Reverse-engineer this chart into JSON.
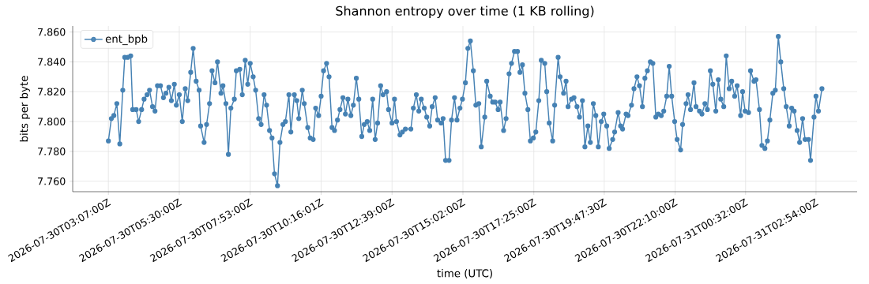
{
  "chart_data": {
    "type": "line",
    "title": "Shannon entropy over time (1 KB rolling)",
    "xlabel": "time (UTC)",
    "ylabel": "bits per byte",
    "x": [
      "2026-07-30T03:07",
      "2026-07-30T03:13",
      "2026-07-30T03:18",
      "2026-07-30T03:24",
      "2026-07-30T03:30",
      "2026-07-30T03:36",
      "2026-07-30T03:40",
      "2026-07-30T03:46",
      "2026-07-30T03:52",
      "2026-07-30T03:56",
      "2026-07-30T04:03",
      "2026-07-30T04:08",
      "2026-07-30T04:14",
      "2026-07-30T04:19",
      "2026-07-30T04:25",
      "2026-07-30T04:30",
      "2026-07-30T04:36",
      "2026-07-30T04:41",
      "2026-07-30T04:46",
      "2026-07-30T04:52",
      "2026-07-30T04:58",
      "2026-07-30T05:03",
      "2026-07-30T05:09",
      "2026-07-30T05:14",
      "2026-07-30T05:20",
      "2026-07-30T05:24",
      "2026-07-30T05:30",
      "2026-07-30T05:36",
      "2026-07-30T05:42",
      "2026-07-30T05:47",
      "2026-07-30T05:53",
      "2026-07-30T05:58",
      "2026-07-30T06:04",
      "2026-07-30T06:10",
      "2026-07-30T06:13",
      "2026-07-30T06:20",
      "2026-07-30T06:25",
      "2026-07-30T06:31",
      "2026-07-30T06:36",
      "2026-07-30T06:42",
      "2026-07-30T06:47",
      "2026-07-30T06:54",
      "2026-07-30T06:58",
      "2026-07-30T07:04",
      "2026-07-30T07:09",
      "2026-07-30T07:14",
      "2026-07-30T07:21",
      "2026-07-30T07:25",
      "2026-07-30T07:32",
      "2026-07-30T07:37",
      "2026-07-30T07:43",
      "2026-07-30T07:48",
      "2026-07-30T07:53",
      "2026-07-30T07:59",
      "2026-07-30T08:04",
      "2026-07-30T08:10",
      "2026-07-30T08:15",
      "2026-07-30T08:21",
      "2026-07-30T08:26",
      "2026-07-30T08:32",
      "2026-07-30T08:37",
      "2026-07-30T08:42",
      "2026-07-30T08:48",
      "2026-07-30T08:53",
      "2026-07-30T08:59",
      "2026-07-30T09:04",
      "2026-07-30T09:11",
      "2026-07-30T09:15",
      "2026-07-30T09:22",
      "2026-07-30T09:27",
      "2026-07-30T09:31",
      "2026-07-30T09:38",
      "2026-07-30T09:42",
      "2026-07-30T09:49",
      "2026-07-30T09:54",
      "2026-07-30T10:00",
      "2026-07-30T10:05",
      "2026-07-30T10:11",
      "2026-07-30T10:16",
      "2026-07-30T10:21",
      "2026-07-30T10:27",
      "2026-07-30T10:32",
      "2026-07-30T10:38",
      "2026-07-30T10:43",
      "2026-07-30T10:49",
      "2026-07-30T10:54",
      "2026-07-30T11:00",
      "2026-07-30T11:05",
      "2026-07-30T11:10",
      "2026-07-30T11:16",
      "2026-07-30T11:21",
      "2026-07-30T11:27",
      "2026-07-30T11:32",
      "2026-07-30T11:38",
      "2026-07-30T11:43",
      "2026-07-30T11:49",
      "2026-07-30T11:54",
      "2026-07-30T12:00",
      "2026-07-30T12:05",
      "2026-07-30T12:10",
      "2026-07-30T12:16",
      "2026-07-30T12:21",
      "2026-07-30T12:28",
      "2026-07-30T12:32",
      "2026-07-30T12:39",
      "2026-07-30T12:44",
      "2026-07-30T12:48",
      "2026-07-30T12:55",
      "2026-07-30T13:00",
      "2026-07-30T13:06",
      "2026-07-30T13:17",
      "2026-07-30T13:22",
      "2026-07-30T13:28",
      "2026-07-30T13:33",
      "2026-07-30T13:38",
      "2026-07-30T13:44",
      "2026-07-30T13:49",
      "2026-07-30T13:55",
      "2026-07-30T14:00",
      "2026-07-30T14:06",
      "2026-07-30T14:11",
      "2026-07-30T14:18",
      "2026-07-30T14:22",
      "2026-07-30T14:27",
      "2026-07-30T14:34",
      "2026-07-30T14:39",
      "2026-07-30T14:45",
      "2026-07-30T14:50",
      "2026-07-30T14:56",
      "2026-07-30T15:01",
      "2026-07-30T15:07",
      "2026-07-30T15:12",
      "2026-07-30T15:17",
      "2026-07-30T15:23",
      "2026-07-30T15:28",
      "2026-07-30T15:34",
      "2026-07-30T15:39",
      "2026-07-30T15:46",
      "2026-07-30T15:50",
      "2026-07-30T15:57",
      "2026-07-30T16:02",
      "2026-07-30T16:07",
      "2026-07-30T16:13",
      "2026-07-30T16:17",
      "2026-07-30T16:24",
      "2026-07-30T16:29",
      "2026-07-30T16:35",
      "2026-07-30T16:40",
      "2026-07-30T16:46",
      "2026-07-30T16:52",
      "2026-07-30T16:57",
      "2026-07-30T17:02",
      "2026-07-30T17:07",
      "2026-07-30T17:13",
      "2026-07-30T17:18",
      "2026-07-30T17:24",
      "2026-07-30T17:29",
      "2026-07-30T17:35",
      "2026-07-30T17:40",
      "2026-07-30T17:47",
      "2026-07-30T17:51",
      "2026-07-30T17:56",
      "2026-07-30T18:03",
      "2026-07-30T18:07",
      "2026-07-30T18:14",
      "2026-07-30T18:18",
      "2026-07-30T18:25",
      "2026-07-30T18:30",
      "2026-07-30T18:34",
      "2026-07-30T18:41",
      "2026-07-30T18:46",
      "2026-07-30T18:52",
      "2026-07-30T18:57",
      "2026-07-30T19:03",
      "2026-07-30T19:08",
      "2026-07-30T19:14",
      "2026-07-30T19:19",
      "2026-07-30T19:25",
      "2026-07-30T19:30",
      "2026-07-30T19:35",
      "2026-07-30T19:41",
      "2026-07-30T19:46",
      "2026-07-30T19:52",
      "2026-07-30T19:57",
      "2026-07-30T20:04",
      "2026-07-30T20:08",
      "2026-07-30T20:15",
      "2026-07-30T20:20",
      "2026-07-30T20:24",
      "2026-07-30T20:31",
      "2026-07-30T20:35",
      "2026-07-30T20:42",
      "2026-07-30T20:47",
      "2026-07-30T20:53",
      "2026-07-30T20:58",
      "2026-07-30T21:04",
      "2026-07-30T21:09",
      "2026-07-30T21:14",
      "2026-07-30T21:20",
      "2026-07-30T21:25",
      "2026-07-30T21:31",
      "2026-07-30T21:36",
      "2026-07-30T21:42",
      "2026-07-30T21:47",
      "2026-07-30T21:53",
      "2026-07-30T21:58",
      "2026-07-30T22:03",
      "2026-07-30T22:09",
      "2026-07-30T22:14",
      "2026-07-30T22:21",
      "2026-07-30T22:25",
      "2026-07-30T22:32",
      "2026-07-30T22:36",
      "2026-07-30T22:41",
      "2026-07-30T22:48",
      "2026-07-30T22:52",
      "2026-07-30T22:59",
      "2026-07-30T23:04",
      "2026-07-30T23:10",
      "2026-07-30T23:15",
      "2026-07-30T23:21",
      "2026-07-30T23:26",
      "2026-07-30T23:32",
      "2026-07-30T23:37",
      "2026-07-30T23:42",
      "2026-07-30T23:48",
      "2026-07-30T23:53",
      "2026-07-30T23:59",
      "2026-07-31T00:04",
      "2026-07-31T00:10",
      "2026-07-31T00:15",
      "2026-07-31T00:22",
      "2026-07-31T00:26",
      "2026-07-31T00:31",
      "2026-07-31T00:38",
      "2026-07-31T00:42",
      "2026-07-31T00:49",
      "2026-07-31T00:53",
      "2026-07-31T01:00",
      "2026-07-31T01:05",
      "2026-07-31T01:11",
      "2026-07-31T01:16",
      "2026-07-31T01:21",
      "2026-07-31T01:27",
      "2026-07-31T01:32",
      "2026-07-31T01:38",
      "2026-07-31T01:43",
      "2026-07-31T01:49",
      "2026-07-31T01:54",
      "2026-07-31T02:00",
      "2026-07-31T02:05",
      "2026-07-31T02:10",
      "2026-07-31T02:16",
      "2026-07-31T02:21",
      "2026-07-31T02:27",
      "2026-07-31T02:32",
      "2026-07-31T02:39",
      "2026-07-31T02:43",
      "2026-07-31T02:50",
      "2026-07-31T02:54",
      "2026-07-31T02:59",
      "2026-07-31T03:06"
    ],
    "series": [
      {
        "name": "ent_bpb",
        "color": "#4682b4",
        "values": [
          7.787,
          7.802,
          7.804,
          7.812,
          7.785,
          7.821,
          7.843,
          7.843,
          7.844,
          7.808,
          7.808,
          7.8,
          7.808,
          7.815,
          7.818,
          7.821,
          7.81,
          7.807,
          7.824,
          7.824,
          7.816,
          7.819,
          7.823,
          7.814,
          7.825,
          7.811,
          7.818,
          7.8,
          7.822,
          7.814,
          7.833,
          7.849,
          7.827,
          7.821,
          7.797,
          7.786,
          7.798,
          7.812,
          7.834,
          7.826,
          7.84,
          7.819,
          7.824,
          7.812,
          7.778,
          7.809,
          7.815,
          7.834,
          7.835,
          7.818,
          7.841,
          7.825,
          7.839,
          7.83,
          7.821,
          7.802,
          7.798,
          7.818,
          7.811,
          7.794,
          7.789,
          7.765,
          7.757,
          7.786,
          7.798,
          7.8,
          7.818,
          7.793,
          7.818,
          7.814,
          7.802,
          7.821,
          7.812,
          7.796,
          7.789,
          7.788,
          7.809,
          7.804,
          7.817,
          7.834,
          7.839,
          7.83,
          7.796,
          7.794,
          7.801,
          7.808,
          7.816,
          7.805,
          7.815,
          7.804,
          7.811,
          7.829,
          7.815,
          7.79,
          7.798,
          7.8,
          7.794,
          7.815,
          7.788,
          7.799,
          7.824,
          7.818,
          7.82,
          7.808,
          7.799,
          7.815,
          7.8,
          7.791,
          7.793,
          7.795,
          7.795,
          7.809,
          7.818,
          7.807,
          7.815,
          7.809,
          7.803,
          7.797,
          7.81,
          7.816,
          7.801,
          7.799,
          7.802,
          7.774,
          7.774,
          7.801,
          7.816,
          7.801,
          7.809,
          7.815,
          7.826,
          7.849,
          7.854,
          7.834,
          7.811,
          7.812,
          7.783,
          7.803,
          7.827,
          7.817,
          7.813,
          7.813,
          7.808,
          7.813,
          7.794,
          7.802,
          7.832,
          7.839,
          7.847,
          7.847,
          7.833,
          7.838,
          7.819,
          7.808,
          7.787,
          7.789,
          7.793,
          7.814,
          7.841,
          7.839,
          7.82,
          7.799,
          7.787,
          7.811,
          7.843,
          7.83,
          7.819,
          7.827,
          7.81,
          7.815,
          7.816,
          7.81,
          7.803,
          7.814,
          7.783,
          7.797,
          7.786,
          7.812,
          7.804,
          7.783,
          7.8,
          7.805,
          7.797,
          7.782,
          7.788,
          7.793,
          7.806,
          7.797,
          7.795,
          7.805,
          7.804,
          7.811,
          7.822,
          7.83,
          7.824,
          7.81,
          7.829,
          7.834,
          7.84,
          7.839,
          7.803,
          7.805,
          7.804,
          7.807,
          7.817,
          7.837,
          7.817,
          7.8,
          7.788,
          7.781,
          7.798,
          7.812,
          7.818,
          7.808,
          7.826,
          7.81,
          7.807,
          7.805,
          7.812,
          7.808,
          7.834,
          7.825,
          7.807,
          7.828,
          7.815,
          7.81,
          7.844,
          7.822,
          7.827,
          7.817,
          7.824,
          7.804,
          7.82,
          7.807,
          7.806,
          7.834,
          7.827,
          7.828,
          7.808,
          7.784,
          7.782,
          7.787,
          7.801,
          7.819,
          7.821,
          7.857,
          7.84,
          7.822,
          7.81,
          7.797,
          7.809,
          7.807,
          7.794,
          7.786,
          7.802,
          7.788,
          7.788,
          7.774,
          7.803,
          7.817,
          7.807,
          7.822
        ]
      }
    ],
    "xlim": [
      "2026-07-30T01:55",
      "2026-07-31T04:17"
    ],
    "xticks": [
      {
        "value": "2026-07-30T03:07",
        "label": "2026-07-30T03:07:00Z"
      },
      {
        "value": "2026-07-30T05:30",
        "label": "2026-07-30T05:30:00Z"
      },
      {
        "value": "2026-07-30T07:53",
        "label": "2026-07-30T07:53:00Z"
      },
      {
        "value": "2026-07-30T10:16",
        "label": "2026-07-30T10:16:01Z"
      },
      {
        "value": "2026-07-30T12:39",
        "label": "2026-07-30T12:39:00Z"
      },
      {
        "value": "2026-07-30T15:02",
        "label": "2026-07-30T15:02:00Z"
      },
      {
        "value": "2026-07-30T17:25",
        "label": "2026-07-30T17:25:00Z"
      },
      {
        "value": "2026-07-30T19:47",
        "label": "2026-07-30T19:47:30Z"
      },
      {
        "value": "2026-07-30T22:10",
        "label": "2026-07-30T22:10:00Z"
      },
      {
        "value": "2026-07-31T00:32",
        "label": "2026-07-31T00:32:00Z"
      },
      {
        "value": "2026-07-31T02:54",
        "label": "2026-07-31T02:54:00Z"
      }
    ],
    "ylim": [
      7.753,
      7.864
    ],
    "yticks": [
      {
        "value": 7.76,
        "label": "7.760"
      },
      {
        "value": 7.78,
        "label": "7.780"
      },
      {
        "value": 7.8,
        "label": "7.800"
      },
      {
        "value": 7.82,
        "label": "7.820"
      },
      {
        "value": 7.84,
        "label": "7.840"
      },
      {
        "value": 7.86,
        "label": "7.860"
      }
    ],
    "grid": true,
    "legend": "top left",
    "marker": "circle",
    "line_style": "solid"
  }
}
